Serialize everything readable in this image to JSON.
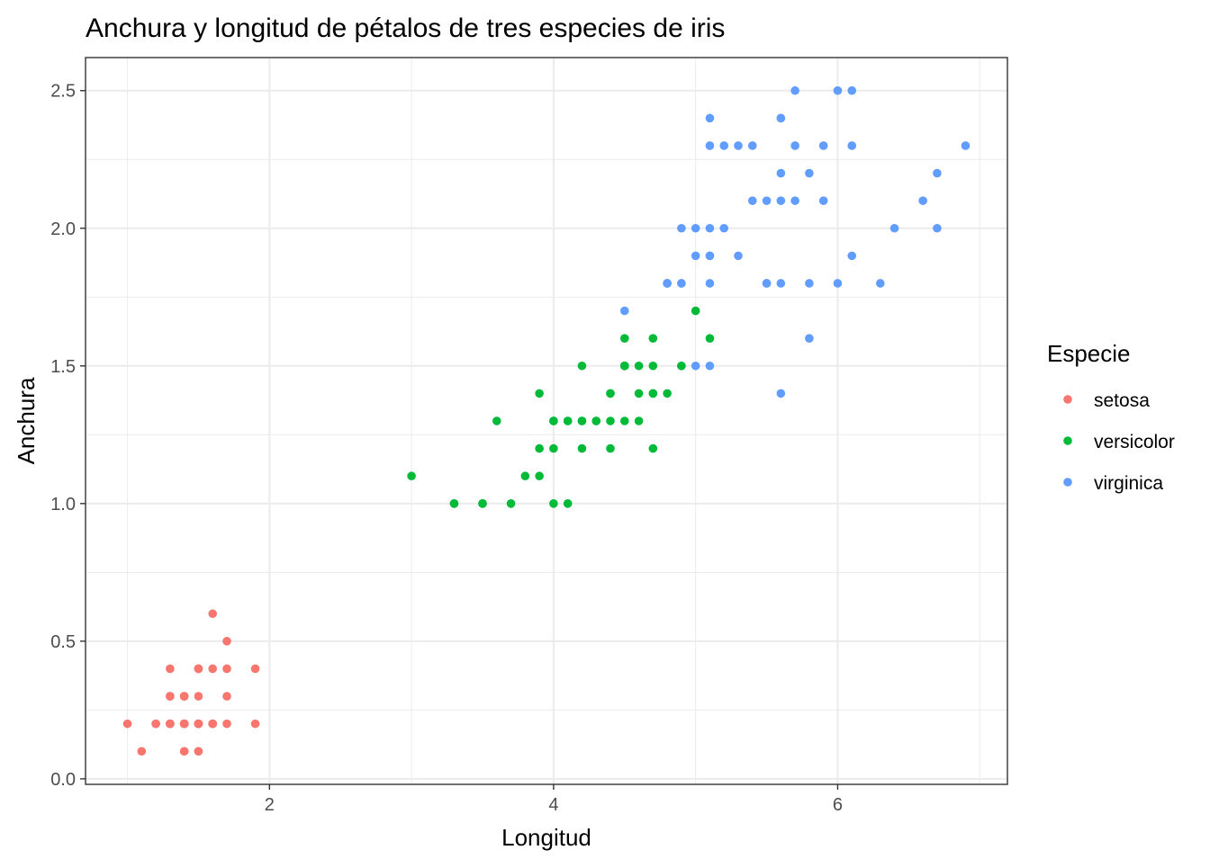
{
  "chart_data": {
    "type": "scatter",
    "title": "Anchura y longitud de pétalos de tres especies de iris",
    "xlabel": "Longitud",
    "ylabel": "Anchura",
    "xlim": [
      0.705,
      7.195
    ],
    "ylim": [
      -0.02,
      2.62
    ],
    "x_ticks": [
      2,
      4,
      6
    ],
    "x_tick_labels": [
      "2",
      "4",
      "6"
    ],
    "y_ticks": [
      0.0,
      0.5,
      1.0,
      1.5,
      2.0,
      2.5
    ],
    "y_tick_labels": [
      "0.0",
      "0.5",
      "1.0",
      "1.5",
      "2.0",
      "2.5"
    ],
    "grid": true,
    "legend": {
      "title": "Especie",
      "position": "right"
    },
    "series": [
      {
        "name": "setosa",
        "color": "#F8766D",
        "points": [
          [
            1.4,
            0.2
          ],
          [
            1.4,
            0.2
          ],
          [
            1.3,
            0.2
          ],
          [
            1.5,
            0.2
          ],
          [
            1.4,
            0.2
          ],
          [
            1.7,
            0.4
          ],
          [
            1.4,
            0.3
          ],
          [
            1.5,
            0.2
          ],
          [
            1.4,
            0.2
          ],
          [
            1.5,
            0.1
          ],
          [
            1.5,
            0.2
          ],
          [
            1.6,
            0.2
          ],
          [
            1.4,
            0.1
          ],
          [
            1.1,
            0.1
          ],
          [
            1.2,
            0.2
          ],
          [
            1.5,
            0.4
          ],
          [
            1.3,
            0.4
          ],
          [
            1.4,
            0.3
          ],
          [
            1.7,
            0.3
          ],
          [
            1.5,
            0.3
          ],
          [
            1.7,
            0.2
          ],
          [
            1.5,
            0.4
          ],
          [
            1.0,
            0.2
          ],
          [
            1.7,
            0.5
          ],
          [
            1.9,
            0.2
          ],
          [
            1.6,
            0.2
          ],
          [
            1.6,
            0.4
          ],
          [
            1.5,
            0.2
          ],
          [
            1.4,
            0.2
          ],
          [
            1.6,
            0.2
          ],
          [
            1.6,
            0.2
          ],
          [
            1.5,
            0.4
          ],
          [
            1.5,
            0.1
          ],
          [
            1.4,
            0.2
          ],
          [
            1.5,
            0.2
          ],
          [
            1.2,
            0.2
          ],
          [
            1.3,
            0.2
          ],
          [
            1.4,
            0.1
          ],
          [
            1.3,
            0.2
          ],
          [
            1.5,
            0.2
          ],
          [
            1.3,
            0.3
          ],
          [
            1.3,
            0.3
          ],
          [
            1.3,
            0.2
          ],
          [
            1.6,
            0.6
          ],
          [
            1.9,
            0.4
          ],
          [
            1.4,
            0.3
          ],
          [
            1.6,
            0.2
          ],
          [
            1.4,
            0.2
          ],
          [
            1.5,
            0.2
          ],
          [
            1.4,
            0.2
          ]
        ]
      },
      {
        "name": "versicolor",
        "color": "#00BA38",
        "points": [
          [
            4.7,
            1.4
          ],
          [
            4.5,
            1.5
          ],
          [
            4.9,
            1.5
          ],
          [
            4.0,
            1.3
          ],
          [
            4.6,
            1.5
          ],
          [
            4.5,
            1.3
          ],
          [
            4.7,
            1.6
          ],
          [
            3.3,
            1.0
          ],
          [
            4.6,
            1.3
          ],
          [
            3.9,
            1.4
          ],
          [
            3.5,
            1.0
          ],
          [
            4.2,
            1.5
          ],
          [
            4.0,
            1.0
          ],
          [
            4.7,
            1.4
          ],
          [
            3.6,
            1.3
          ],
          [
            4.4,
            1.4
          ],
          [
            4.5,
            1.5
          ],
          [
            4.1,
            1.0
          ],
          [
            4.5,
            1.5
          ],
          [
            3.9,
            1.1
          ],
          [
            4.8,
            1.8
          ],
          [
            4.0,
            1.3
          ],
          [
            4.9,
            1.5
          ],
          [
            4.7,
            1.2
          ],
          [
            4.3,
            1.3
          ],
          [
            4.4,
            1.4
          ],
          [
            4.8,
            1.4
          ],
          [
            5.0,
            1.7
          ],
          [
            4.5,
            1.5
          ],
          [
            3.5,
            1.0
          ],
          [
            3.8,
            1.1
          ],
          [
            3.7,
            1.0
          ],
          [
            3.9,
            1.2
          ],
          [
            5.1,
            1.6
          ],
          [
            4.5,
            1.5
          ],
          [
            4.5,
            1.6
          ],
          [
            4.7,
            1.5
          ],
          [
            4.4,
            1.3
          ],
          [
            4.1,
            1.3
          ],
          [
            4.0,
            1.3
          ],
          [
            4.4,
            1.2
          ],
          [
            4.6,
            1.4
          ],
          [
            4.0,
            1.2
          ],
          [
            3.3,
            1.0
          ],
          [
            4.2,
            1.3
          ],
          [
            4.2,
            1.2
          ],
          [
            4.2,
            1.3
          ],
          [
            4.3,
            1.3
          ],
          [
            3.0,
            1.1
          ],
          [
            4.1,
            1.3
          ]
        ]
      },
      {
        "name": "virginica",
        "color": "#619CFF",
        "points": [
          [
            6.0,
            2.5
          ],
          [
            5.1,
            1.9
          ],
          [
            5.9,
            2.1
          ],
          [
            5.6,
            1.8
          ],
          [
            5.8,
            2.2
          ],
          [
            6.6,
            2.1
          ],
          [
            4.5,
            1.7
          ],
          [
            6.3,
            1.8
          ],
          [
            5.8,
            1.8
          ],
          [
            6.1,
            2.5
          ],
          [
            5.1,
            2.0
          ],
          [
            5.3,
            1.9
          ],
          [
            5.5,
            2.1
          ],
          [
            5.0,
            2.0
          ],
          [
            5.1,
            2.4
          ],
          [
            5.3,
            2.3
          ],
          [
            5.5,
            1.8
          ],
          [
            6.7,
            2.2
          ],
          [
            6.9,
            2.3
          ],
          [
            5.0,
            1.5
          ],
          [
            5.7,
            2.3
          ],
          [
            4.9,
            2.0
          ],
          [
            6.7,
            2.0
          ],
          [
            4.9,
            1.8
          ],
          [
            5.7,
            2.1
          ],
          [
            6.0,
            1.8
          ],
          [
            4.8,
            1.8
          ],
          [
            4.9,
            1.8
          ],
          [
            5.6,
            2.1
          ],
          [
            5.8,
            1.6
          ],
          [
            6.1,
            1.9
          ],
          [
            6.4,
            2.0
          ],
          [
            5.6,
            2.2
          ],
          [
            5.1,
            1.5
          ],
          [
            5.6,
            1.4
          ],
          [
            6.1,
            2.3
          ],
          [
            5.6,
            2.4
          ],
          [
            5.5,
            1.8
          ],
          [
            4.8,
            1.8
          ],
          [
            5.4,
            2.1
          ],
          [
            5.6,
            2.4
          ],
          [
            5.1,
            2.3
          ],
          [
            5.1,
            1.9
          ],
          [
            5.9,
            2.3
          ],
          [
            5.7,
            2.5
          ],
          [
            5.2,
            2.3
          ],
          [
            5.0,
            1.9
          ],
          [
            5.2,
            2.0
          ],
          [
            5.4,
            2.3
          ],
          [
            5.1,
            1.8
          ]
        ]
      }
    ]
  }
}
